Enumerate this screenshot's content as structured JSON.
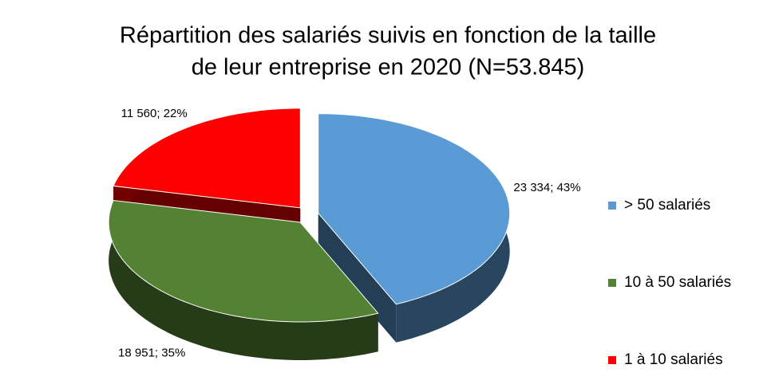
{
  "chart_data": {
    "type": "pie3d",
    "title": [
      "Répartition des salariés suivis en fonction de la taille",
      "de leur entreprise en 2020 (N=53.845)"
    ],
    "categories": [
      "> 50 salariés",
      "10 à 50 salariés",
      "1 à 10 salariés"
    ],
    "values": [
      23334,
      18951,
      11560
    ],
    "value_labels": [
      "23 334; 43%",
      "18 951; 35%",
      "11 560; 22%"
    ],
    "colors": [
      "#5b9bd5",
      "#548235",
      "#ff0000"
    ],
    "legend": "right"
  }
}
